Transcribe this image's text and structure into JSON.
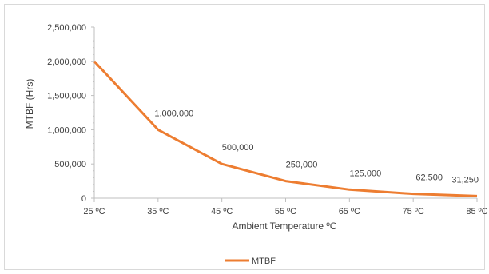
{
  "chart_data": {
    "type": "line",
    "title": "",
    "xlabel": "Ambient Temperature ºC",
    "ylabel": "MTBF (Hrs)",
    "categories": [
      "25 ºC",
      "35 ºC",
      "45 ºC",
      "55 ºC",
      "65 ºC",
      "75 ºC",
      "85 ºC"
    ],
    "series": [
      {
        "name": "MTBF",
        "values": [
          2000000,
          1000000,
          500000,
          250000,
          125000,
          62500,
          31250
        ],
        "data_labels": [
          "",
          "1,000,000",
          "500,000",
          "250,000",
          "125,000",
          "62,500",
          "31,250"
        ],
        "color": "#ed7d31"
      }
    ],
    "ylim": [
      0,
      2500000
    ],
    "yticks": [
      0,
      500000,
      1000000,
      1500000,
      2000000,
      2500000
    ],
    "ytick_labels": [
      "0",
      "500,000",
      "1,000,000",
      "1,500,000",
      "2,000,000",
      "2,500,000"
    ],
    "grid": false,
    "legend_position": "bottom",
    "colors": {
      "axis": "#bfbfbf",
      "text": "#404040",
      "frame": "#d9d9d9"
    }
  }
}
